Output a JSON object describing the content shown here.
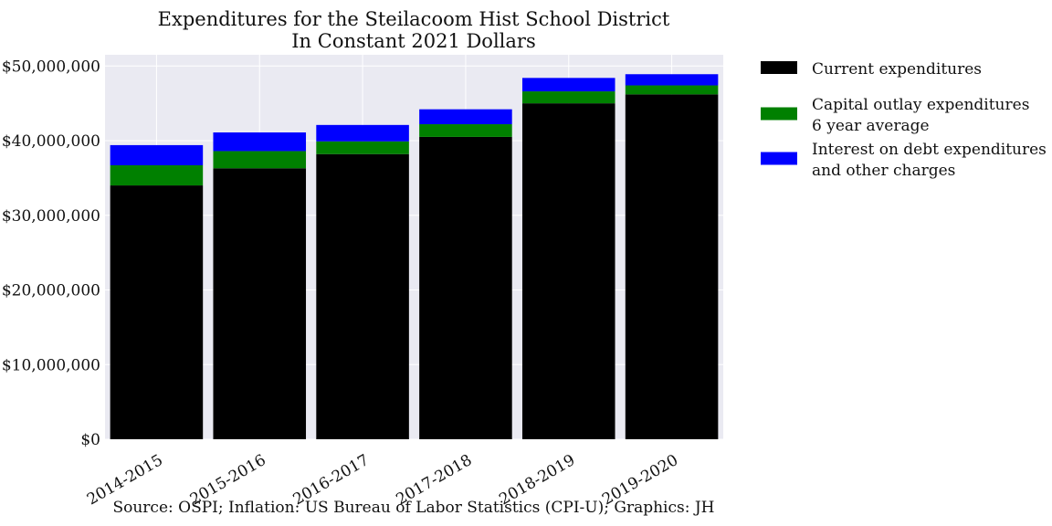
{
  "chart_data": {
    "type": "bar",
    "stacked": true,
    "title": [
      "Expenditures for the Steilacoom Hist School District",
      "In Constant 2021 Dollars"
    ],
    "categories": [
      "2014-2015",
      "2015-2016",
      "2016-2017",
      "2017-2018",
      "2018-2019",
      "2019-2020"
    ],
    "series": [
      {
        "name_lines": [
          "Current expenditures"
        ],
        "color": "#000000",
        "values": [
          34000000,
          36300000,
          38200000,
          40500000,
          45000000,
          46200000
        ]
      },
      {
        "name_lines": [
          "Capital outlay expenditures",
          "6 year average"
        ],
        "color": "#008000",
        "values": [
          2700000,
          2300000,
          1700000,
          1700000,
          1600000,
          1200000
        ]
      },
      {
        "name_lines": [
          "Interest on debt expenditures",
          "and other charges"
        ],
        "color": "#0000ff",
        "values": [
          2700000,
          2500000,
          2200000,
          2000000,
          1800000,
          1500000
        ]
      }
    ],
    "ylim": [
      0,
      51500000
    ],
    "yticks": [
      0,
      10000000,
      20000000,
      30000000,
      40000000,
      50000000
    ],
    "ytick_labels": [
      "$0",
      "$10,000,000",
      "$20,000,000",
      "$30,000,000",
      "$40,000,000",
      "$50,000,000"
    ],
    "xlabel": "",
    "ylabel": "",
    "grid": true,
    "legend": "outside-right",
    "colors": {
      "plot_bg": "#eaeaf2",
      "grid": "#ffffff"
    },
    "source": "Source: OSPI; Inflation: US Bureau of Labor Statistics (CPI-U); Graphics: JH"
  }
}
